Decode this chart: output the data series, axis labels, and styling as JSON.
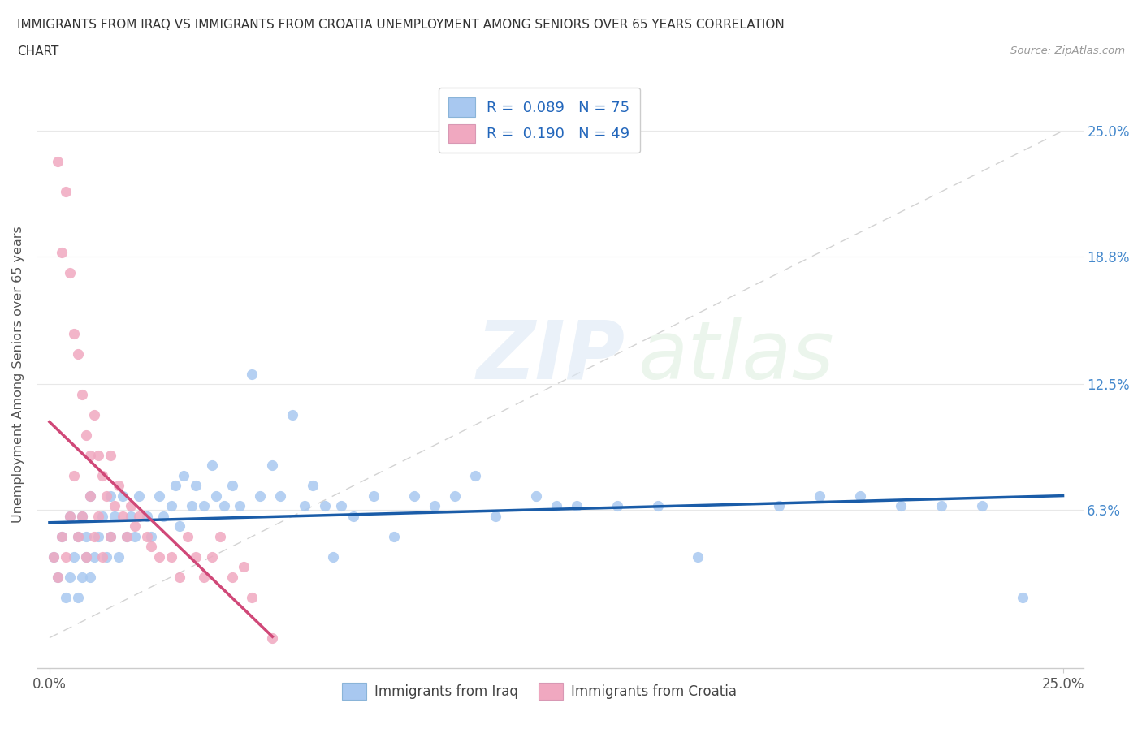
{
  "title_line1": "IMMIGRANTS FROM IRAQ VS IMMIGRANTS FROM CROATIA UNEMPLOYMENT AMONG SENIORS OVER 65 YEARS CORRELATION",
  "title_line2": "CHART",
  "source_text": "Source: ZipAtlas.com",
  "ylabel": "Unemployment Among Seniors over 65 years",
  "xlim": [
    -0.003,
    0.255
  ],
  "ylim": [
    -0.015,
    0.275
  ],
  "xticks": [
    0.0,
    0.25
  ],
  "xticklabels": [
    "0.0%",
    "25.0%"
  ],
  "ytick_positions": [
    0.063,
    0.125,
    0.188,
    0.25
  ],
  "ytick_labels": [
    "6.3%",
    "12.5%",
    "18.8%",
    "25.0%"
  ],
  "iraq_R": 0.089,
  "iraq_N": 75,
  "croatia_R": 0.19,
  "croatia_N": 49,
  "iraq_color": "#a8c8f0",
  "croatia_color": "#f0a8c0",
  "iraq_line_color": "#1a5ca8",
  "croatia_line_color": "#d04878",
  "diagonal_color": "#c8c8c8",
  "legend_iraq": "Immigrants from Iraq",
  "legend_croatia": "Immigrants from Croatia",
  "tick_color": "#4488cc",
  "iraq_x": [
    0.001,
    0.002,
    0.003,
    0.004,
    0.005,
    0.005,
    0.006,
    0.007,
    0.007,
    0.008,
    0.008,
    0.009,
    0.009,
    0.01,
    0.01,
    0.011,
    0.012,
    0.013,
    0.014,
    0.015,
    0.015,
    0.016,
    0.017,
    0.018,
    0.019,
    0.02,
    0.021,
    0.022,
    0.024,
    0.025,
    0.027,
    0.028,
    0.03,
    0.031,
    0.032,
    0.033,
    0.035,
    0.036,
    0.038,
    0.04,
    0.041,
    0.043,
    0.045,
    0.047,
    0.05,
    0.052,
    0.055,
    0.057,
    0.06,
    0.063,
    0.065,
    0.068,
    0.07,
    0.072,
    0.075,
    0.08,
    0.085,
    0.09,
    0.095,
    0.1,
    0.105,
    0.11,
    0.12,
    0.125,
    0.13,
    0.14,
    0.15,
    0.16,
    0.18,
    0.19,
    0.2,
    0.21,
    0.22,
    0.23,
    0.24
  ],
  "iraq_y": [
    0.04,
    0.03,
    0.05,
    0.02,
    0.06,
    0.03,
    0.04,
    0.05,
    0.02,
    0.06,
    0.03,
    0.04,
    0.05,
    0.03,
    0.07,
    0.04,
    0.05,
    0.06,
    0.04,
    0.07,
    0.05,
    0.06,
    0.04,
    0.07,
    0.05,
    0.06,
    0.05,
    0.07,
    0.06,
    0.05,
    0.07,
    0.06,
    0.065,
    0.075,
    0.055,
    0.08,
    0.065,
    0.075,
    0.065,
    0.085,
    0.07,
    0.065,
    0.075,
    0.065,
    0.13,
    0.07,
    0.085,
    0.07,
    0.11,
    0.065,
    0.075,
    0.065,
    0.04,
    0.065,
    0.06,
    0.07,
    0.05,
    0.07,
    0.065,
    0.07,
    0.08,
    0.06,
    0.07,
    0.065,
    0.065,
    0.065,
    0.065,
    0.04,
    0.065,
    0.07,
    0.07,
    0.065,
    0.065,
    0.065,
    0.02
  ],
  "croatia_x": [
    0.001,
    0.002,
    0.002,
    0.003,
    0.003,
    0.004,
    0.004,
    0.005,
    0.005,
    0.006,
    0.006,
    0.007,
    0.007,
    0.008,
    0.008,
    0.009,
    0.009,
    0.01,
    0.01,
    0.011,
    0.011,
    0.012,
    0.012,
    0.013,
    0.013,
    0.014,
    0.015,
    0.015,
    0.016,
    0.017,
    0.018,
    0.019,
    0.02,
    0.021,
    0.022,
    0.024,
    0.025,
    0.027,
    0.03,
    0.032,
    0.034,
    0.036,
    0.038,
    0.04,
    0.042,
    0.045,
    0.048,
    0.05,
    0.055
  ],
  "croatia_y": [
    0.04,
    0.235,
    0.03,
    0.19,
    0.05,
    0.22,
    0.04,
    0.18,
    0.06,
    0.15,
    0.08,
    0.14,
    0.05,
    0.12,
    0.06,
    0.1,
    0.04,
    0.09,
    0.07,
    0.11,
    0.05,
    0.09,
    0.06,
    0.08,
    0.04,
    0.07,
    0.09,
    0.05,
    0.065,
    0.075,
    0.06,
    0.05,
    0.065,
    0.055,
    0.06,
    0.05,
    0.045,
    0.04,
    0.04,
    0.03,
    0.05,
    0.04,
    0.03,
    0.04,
    0.05,
    0.03,
    0.035,
    0.02,
    0.0
  ]
}
